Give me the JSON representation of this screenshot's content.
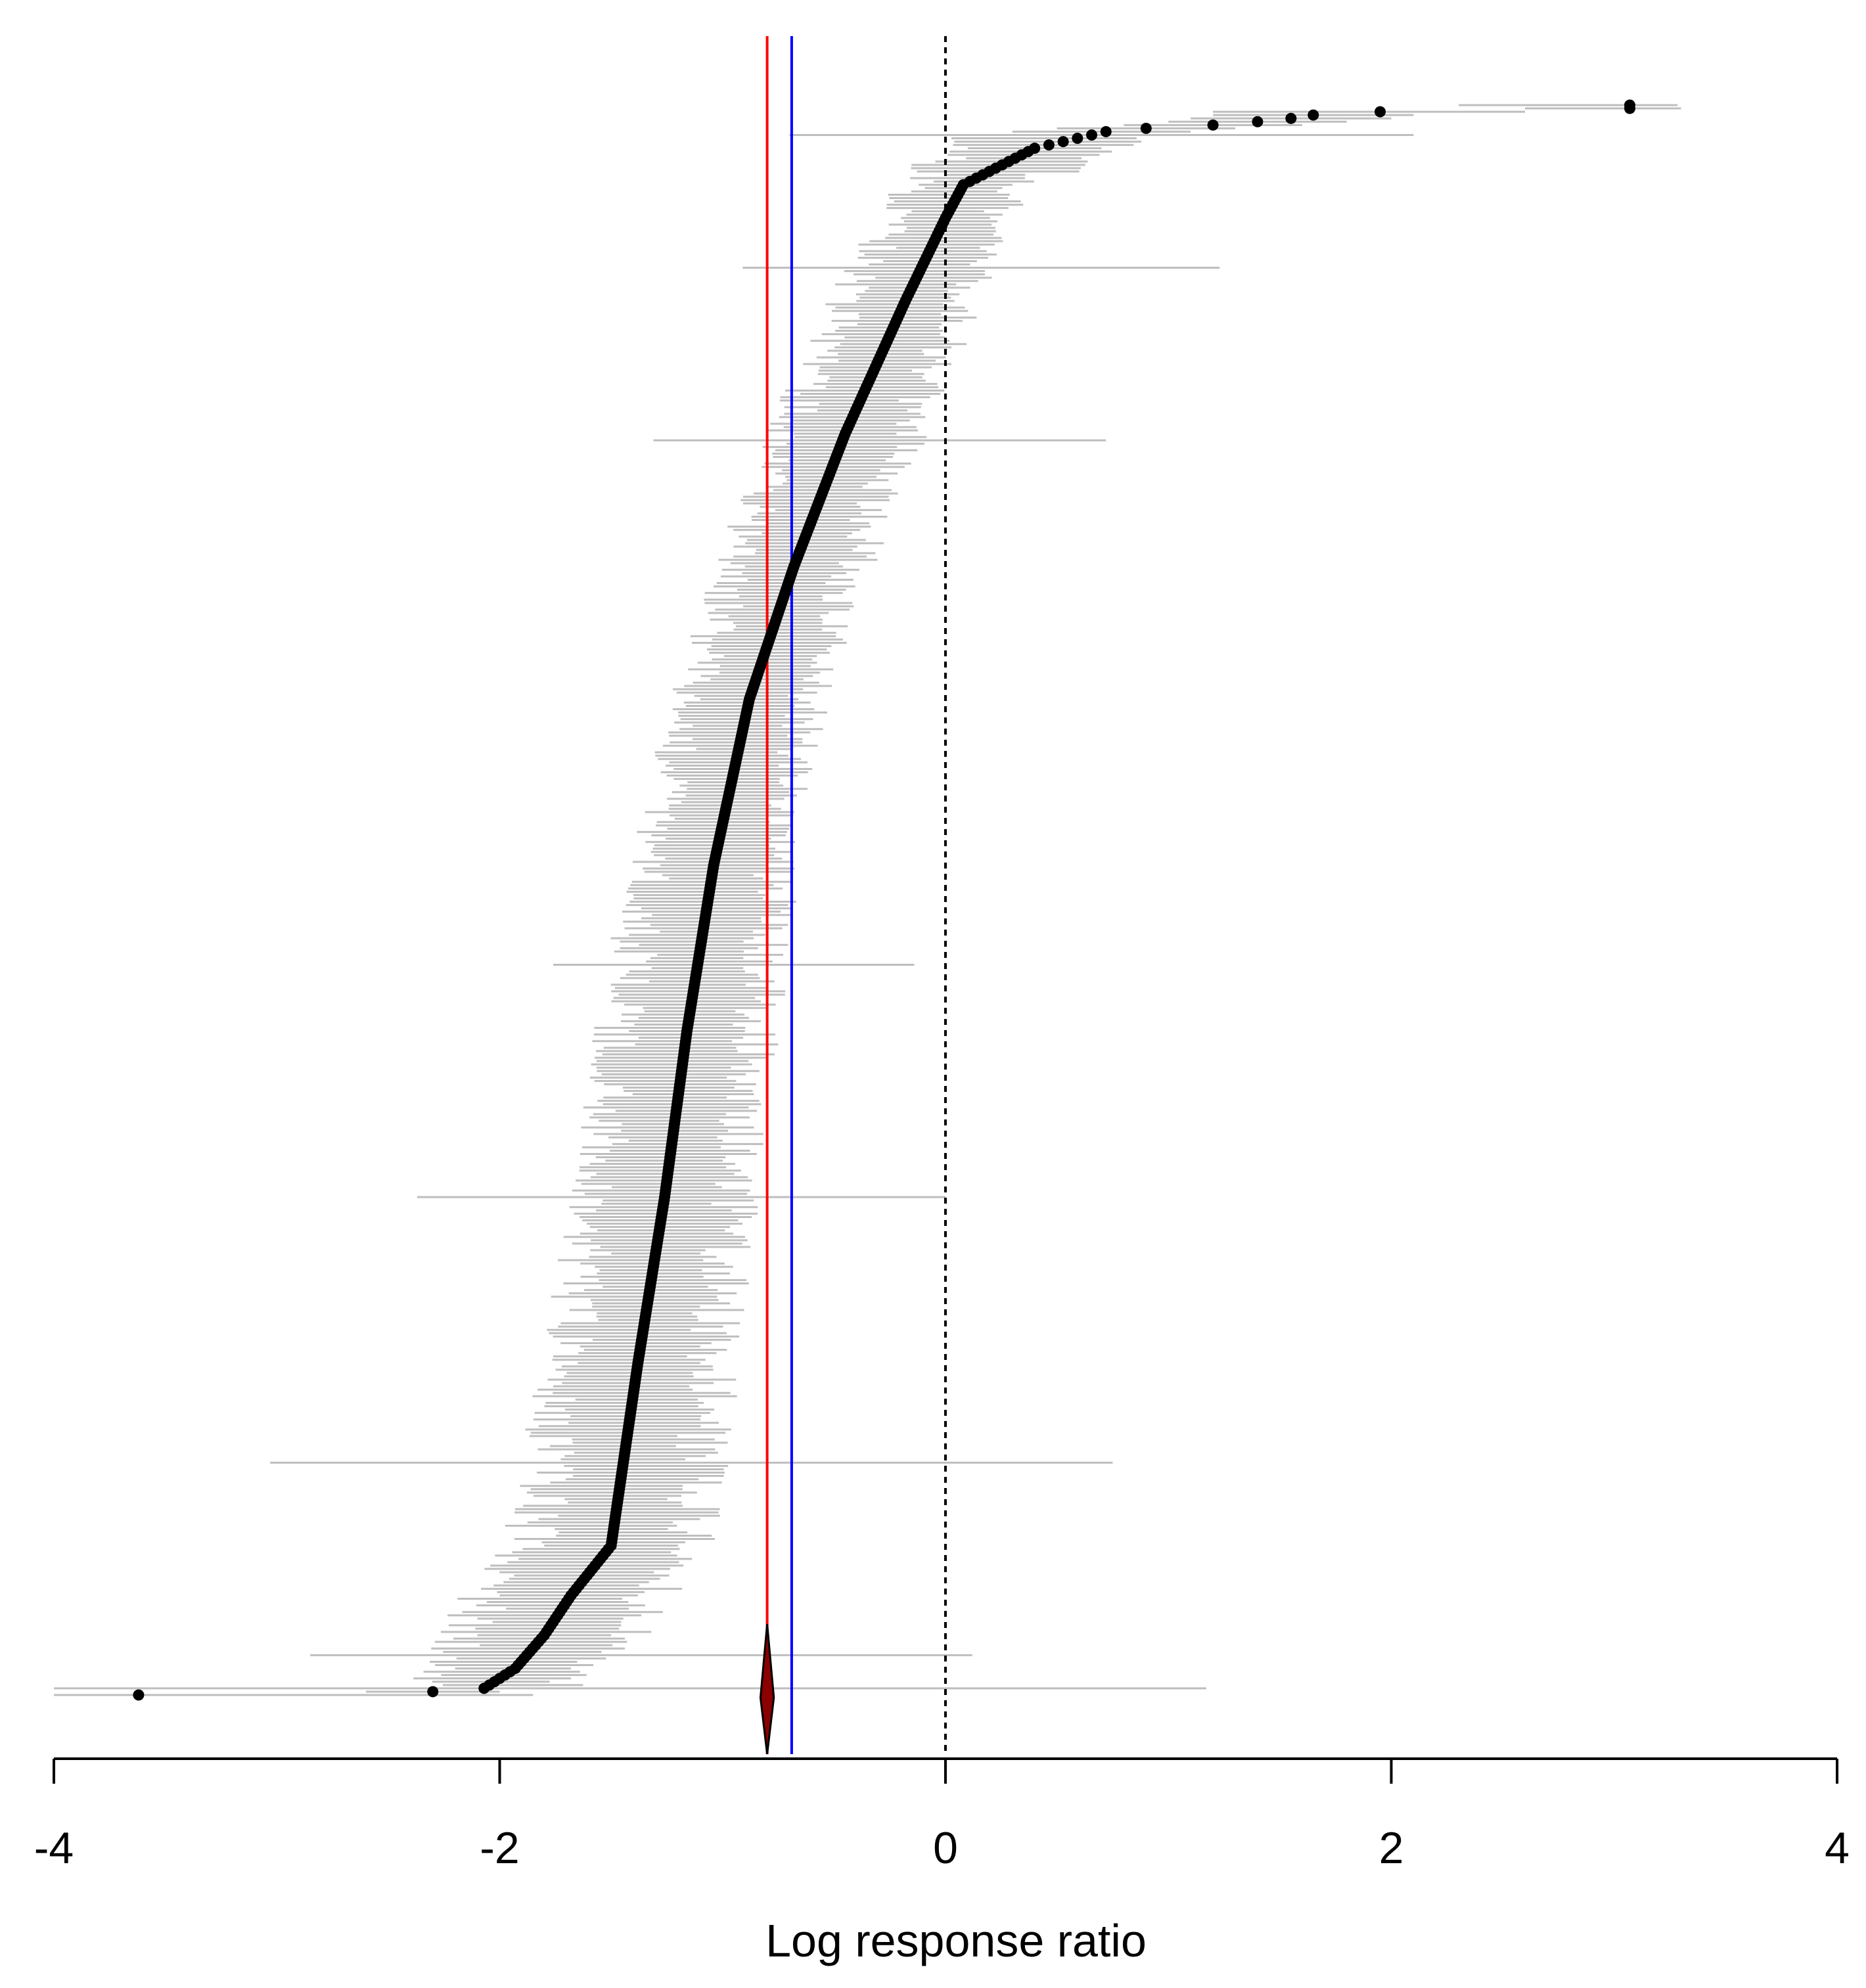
{
  "chart_data": {
    "type": "scatter",
    "subtype": "forest-plot (caterpillar)",
    "title": "",
    "xlabel": "Log response ratio",
    "ylabel": "",
    "xlim": [
      -4,
      4
    ],
    "x_ticks": [
      -4,
      -2,
      0,
      2,
      4
    ],
    "x_tick_labels": [
      "-4",
      "-2",
      "0",
      "2",
      "4"
    ],
    "grid": false,
    "legend": "none",
    "n_studies": 480,
    "effect_sizes_anchor_points": [
      {
        "rank": 0,
        "value": -3.62,
        "ci": [
          -4.0,
          -1.85
        ]
      },
      {
        "rank": 1,
        "value": -2.3,
        "ci": [
          -2.6,
          -2.0
        ]
      },
      {
        "rank": 2,
        "value": -2.07,
        "ci": [
          -2.35,
          -1.8
        ]
      },
      {
        "rank": 8,
        "value": -1.93,
        "ci": [
          -2.2,
          -1.68
        ]
      },
      {
        "rank": 18,
        "value": -1.8,
        "ci": [
          -2.1,
          -1.5
        ]
      },
      {
        "rank": 30,
        "value": -1.68,
        "ci": [
          -2.0,
          -1.38
        ]
      },
      {
        "rank": 45,
        "value": -1.5,
        "ci": [
          -1.8,
          -1.2
        ]
      },
      {
        "rank": 100,
        "value": -1.38,
        "ci": [
          -1.65,
          -1.1
        ]
      },
      {
        "rank": 150,
        "value": -1.26,
        "ci": [
          -1.52,
          -1.0
        ]
      },
      {
        "rank": 200,
        "value": -1.16,
        "ci": [
          -1.42,
          -0.9
        ]
      },
      {
        "rank": 250,
        "value": -1.04,
        "ci": [
          -1.28,
          -0.8
        ]
      },
      {
        "rank": 300,
        "value": -0.88,
        "ci": [
          -1.1,
          -0.66
        ]
      },
      {
        "rank": 340,
        "value": -0.68,
        "ci": [
          -0.9,
          -0.46
        ]
      },
      {
        "rank": 380,
        "value": -0.45,
        "ci": [
          -0.68,
          -0.22
        ]
      },
      {
        "rank": 420,
        "value": -0.18,
        "ci": [
          -0.4,
          0.04
        ]
      },
      {
        "rank": 445,
        "value": 0.0,
        "ci": [
          -0.2,
          0.2
        ]
      },
      {
        "rank": 455,
        "value": 0.08,
        "ci": [
          -0.12,
          0.3
        ]
      },
      {
        "rank": 466,
        "value": 0.4,
        "ci": [
          0.1,
          0.7
        ]
      },
      {
        "rank": 471,
        "value": 0.72,
        "ci": [
          0.3,
          1.1
        ]
      },
      {
        "rank": 472,
        "value": 0.9,
        "ci": [
          0.5,
          1.3
        ]
      },
      {
        "rank": 473,
        "value": 1.2,
        "ci": [
          0.8,
          1.6
        ]
      },
      {
        "rank": 474,
        "value": 1.4,
        "ci": [
          1.0,
          1.8
        ]
      },
      {
        "rank": 475,
        "value": 1.55,
        "ci": [
          1.1,
          2.0
        ]
      },
      {
        "rank": 476,
        "value": 1.65,
        "ci": [
          1.2,
          2.1
        ]
      },
      {
        "rank": 477,
        "value": 1.95,
        "ci": [
          1.2,
          2.6
        ]
      },
      {
        "rank": 478,
        "value": 3.07,
        "ci": [
          2.6,
          3.3
        ]
      }
    ],
    "outlier_ci_bars": [
      {
        "rank": 2,
        "ci": [
          -4.0,
          1.17
        ]
      },
      {
        "rank": 12,
        "ci": [
          -2.85,
          0.12
        ]
      },
      {
        "rank": 70,
        "ci": [
          -3.03,
          0.75
        ]
      },
      {
        "rank": 150,
        "ci": [
          -2.37,
          0.0
        ]
      },
      {
        "rank": 220,
        "ci": [
          -1.76,
          -0.14
        ]
      },
      {
        "rank": 378,
        "ci": [
          -1.31,
          0.72
        ]
      },
      {
        "rank": 430,
        "ci": [
          -0.91,
          1.23
        ]
      },
      {
        "rank": 470,
        "ci": [
          -0.7,
          2.1
        ]
      }
    ],
    "summary_estimate": {
      "value": -0.8,
      "ci": [
        -0.83,
        -0.77
      ],
      "color": "#8b0000"
    },
    "reference_lines": [
      {
        "value": -0.8,
        "color": "#ff0000",
        "style": "solid"
      },
      {
        "value": -0.69,
        "color": "#0000ff",
        "style": "solid"
      },
      {
        "value": 0,
        "color": "#000000",
        "style": "dashed"
      }
    ],
    "colors": {
      "point": "#000000",
      "ci": "#bebebe",
      "axis": "#000000"
    }
  }
}
